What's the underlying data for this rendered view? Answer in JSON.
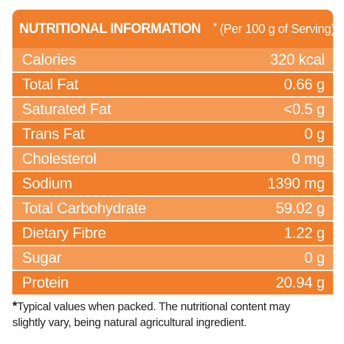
{
  "title": {
    "main": "NUTRITIONAL INFORMATION",
    "marker": "*",
    "sub": "(Per 100 g of Serving)"
  },
  "rows": [
    {
      "label": "Calories",
      "value": "320 kcal"
    },
    {
      "label": "Total Fat",
      "value": "0.66 g"
    },
    {
      "label": "Saturated Fat",
      "value": "<0.5 g"
    },
    {
      "label": "Trans Fat",
      "value": "0 g"
    },
    {
      "label": "Cholesterol",
      "value": "0 mg"
    },
    {
      "label": "Sodium",
      "value": "1390 mg"
    },
    {
      "label": "Total Carbohydrate",
      "value": "59.02 g"
    },
    {
      "label": "Dietary Fibre",
      "value": "1.22 g"
    },
    {
      "label": "Sugar",
      "value": "0 g"
    },
    {
      "label": "Protein",
      "value": "20.94 g"
    }
  ],
  "footnote": {
    "marker": "*",
    "line1": "Typical values when packed. The nutritional content may",
    "line2": "slightly vary, being natural agricultural ingredient."
  },
  "colors": {
    "band_dark": "#f07e2a",
    "band_light": "#f49a55",
    "text": "#ffffff"
  }
}
